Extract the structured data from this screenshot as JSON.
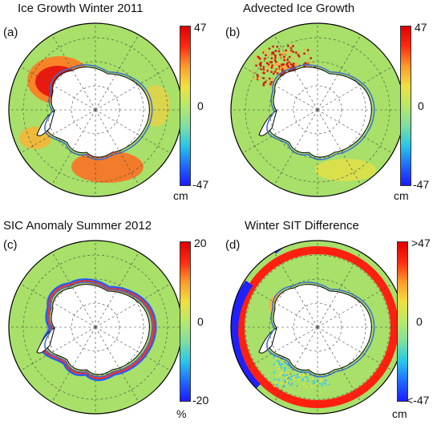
{
  "figure": {
    "panels": [
      {
        "id": "a",
        "letter": "(a)",
        "title": "Ice Growth Winter 2011",
        "colorbar": {
          "max_label": "47",
          "mid_label": "0",
          "min_label": "-47",
          "unit": "cm"
        },
        "field": "ice-growth"
      },
      {
        "id": "b",
        "letter": "(b)",
        "title": "Advected Ice Growth",
        "colorbar": {
          "max_label": "47",
          "mid_label": "0",
          "min_label": "-47",
          "unit": "cm"
        },
        "field": "advected-growth"
      },
      {
        "id": "c",
        "letter": "(c)",
        "title": "SIC Anomaly Summer 2012",
        "colorbar": {
          "max_label": "20",
          "mid_label": "0",
          "min_label": "-20",
          "unit": "%"
        },
        "field": "sic-anomaly"
      },
      {
        "id": "d",
        "letter": "(d)",
        "title": "Winter SIT Difference",
        "colorbar": {
          "max_label": ">47",
          "mid_label": "0",
          "min_label": "<-47",
          "unit": "cm"
        },
        "field": "sit-difference"
      }
    ],
    "colors": {
      "background_green": "#a8e06a",
      "land": "#ffffff",
      "coast": "#000000",
      "ice_edge": "#3f6fd0",
      "colormap": [
        "#1a1aff",
        "#1f6bff",
        "#28c8e8",
        "#7fe0a0",
        "#b8e86a",
        "#f0e040",
        "#ff9a2a",
        "#ff2a10",
        "#e00000"
      ]
    }
  }
}
